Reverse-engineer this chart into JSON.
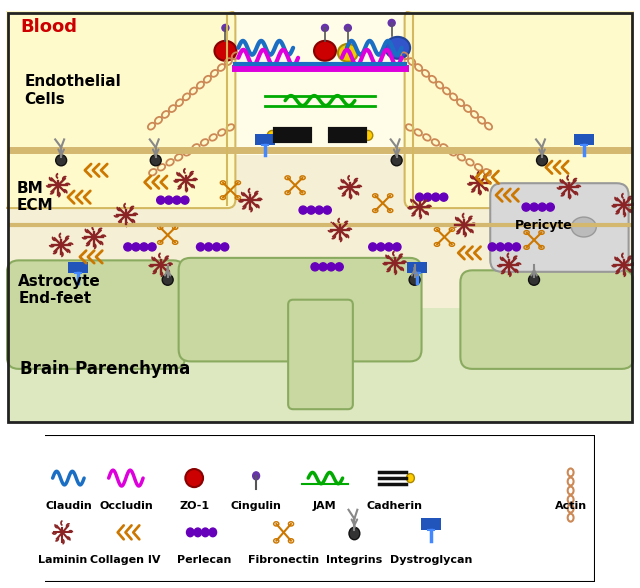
{
  "colors": {
    "blood_label": "#cc0000",
    "bg_blood": "#fffde8",
    "bg_ecm": "#faf5e8",
    "bg_brain": "#dde8c0",
    "astrocyte_fill": "#c8d8a0",
    "astrocyte_edge": "#8aaa60",
    "cell_fill": "#fffacc",
    "cell_edge": "#d4b860",
    "pericyte_fill": "#d8d8d8",
    "pericyte_edge": "#999999",
    "border": "#222222",
    "claudin": "#1a6fc4",
    "occludin": "#dd00dd",
    "zo1": "#cc0000",
    "jam": "#00aa00",
    "cadherin": "#222222",
    "cadherin_dot": "#ffcc00",
    "cingulin": "#333333",
    "cingulin_ball": "#6633aa",
    "laminin": "#8b2525",
    "collagen": "#cc7700",
    "perlecan": "#6600bb",
    "fibronectin": "#cc7700",
    "integrins": "#888888",
    "dystroglycan": "#2255bb",
    "dystroglycan_stem": "#4488ff",
    "actin": "#cc8855",
    "ecm_border": "#d4a870",
    "arrow_gray": "#777777",
    "zo1_red": "#cc0000",
    "zo1_yellow": "#eecc00",
    "zo1_blue": "#3355cc"
  },
  "labels": {
    "blood": "Blood",
    "endothelial": "Endothelial\nCells",
    "bm_ecm": "BM\nECM",
    "astrocyte": "Astrocyte\nEnd-feet",
    "brain": "Brain Parenchyma",
    "pericyte": "Pericyte"
  },
  "legend_row1": [
    "Claudin",
    "Occludin",
    "ZO-1",
    "Cingulin",
    "JAM",
    "Cadherin"
  ],
  "legend_row2": [
    "Laminin",
    "Collagen IV",
    "Perlecan",
    "Fibronectin",
    "Integrins",
    "Dystroglycan",
    "Actin"
  ]
}
